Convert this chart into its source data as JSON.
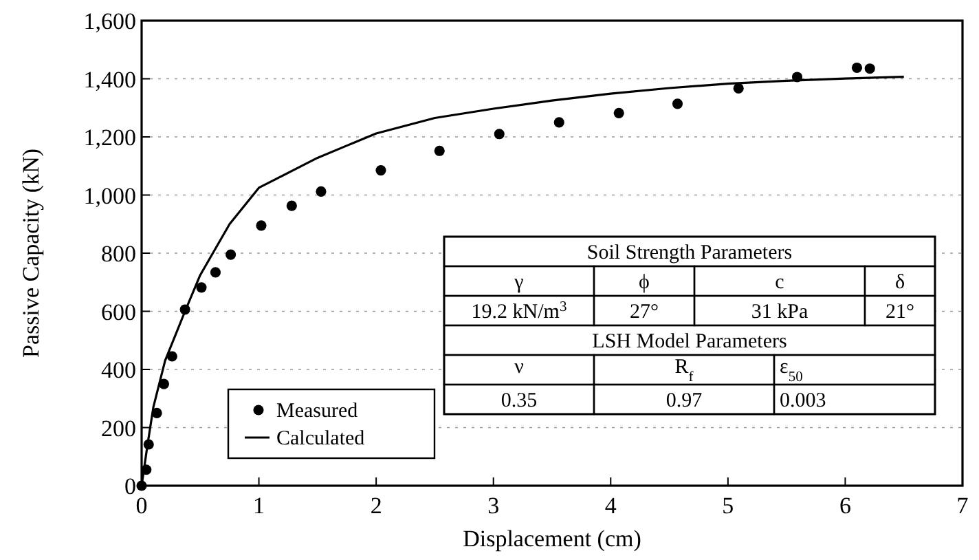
{
  "chart_data": {
    "type": "scatter",
    "xlabel": "Displacement (cm)",
    "ylabel": "Passive Capacity (kN)",
    "xlim": [
      0,
      7
    ],
    "xticks": [
      0,
      1,
      2,
      3,
      4,
      5,
      6,
      7
    ],
    "ylim": [
      0,
      1600
    ],
    "yticks": [
      0,
      200,
      400,
      600,
      800,
      {
        "value": 1000,
        "label": "1,000"
      },
      {
        "value": 1200,
        "label": "1,200"
      },
      {
        "value": 1400,
        "label": "1,400"
      },
      {
        "value": 1600,
        "label": "1,600"
      }
    ],
    "grid": "y",
    "legend": "bottom left",
    "series": [
      {
        "name": "Measured",
        "color": "#000000",
        "marker": "circle",
        "x": [
          0,
          0.04,
          0.06,
          0.13,
          0.19,
          0.26,
          0.37,
          0.51,
          0.63,
          0.76,
          1.02,
          1.28,
          1.53,
          2.04,
          2.54,
          3.05,
          3.56,
          4.07,
          4.57,
          5.09,
          5.59,
          6.1,
          6.21
        ],
        "values": [
          0,
          55,
          142,
          250,
          350,
          445,
          606,
          682,
          734,
          795,
          895,
          963,
          1012,
          1085,
          1152,
          1210,
          1250,
          1282,
          1314,
          1367,
          1406,
          1438,
          1435
        ]
      },
      {
        "name": "Calculated",
        "type": "line",
        "color": "#000000",
        "line_style": "solid",
        "x": [
          0,
          0.05,
          0.1,
          0.2,
          0.37,
          0.5,
          0.75,
          1,
          1.5,
          2,
          2.5,
          3,
          3.5,
          4,
          4.5,
          5,
          5.5,
          6,
          6.5
        ],
        "values": [
          0,
          140,
          270,
          430,
          600,
          725,
          900,
          1025,
          1128,
          1212,
          1265,
          1297,
          1325,
          1349,
          1368,
          1383,
          1393,
          1401,
          1407
        ]
      }
    ],
    "annotations": [
      "Soil Strength Parameters",
      "γ",
      "ϕ",
      "c",
      "δ",
      "19.2 kN/m$^{3}$",
      "27°",
      "31 kPa",
      "21°",
      "LSH Model Parameters",
      "ν",
      "R$_{f}$",
      "ε$_{50}$",
      "0.35",
      "0.97",
      "0.003"
    ]
  }
}
